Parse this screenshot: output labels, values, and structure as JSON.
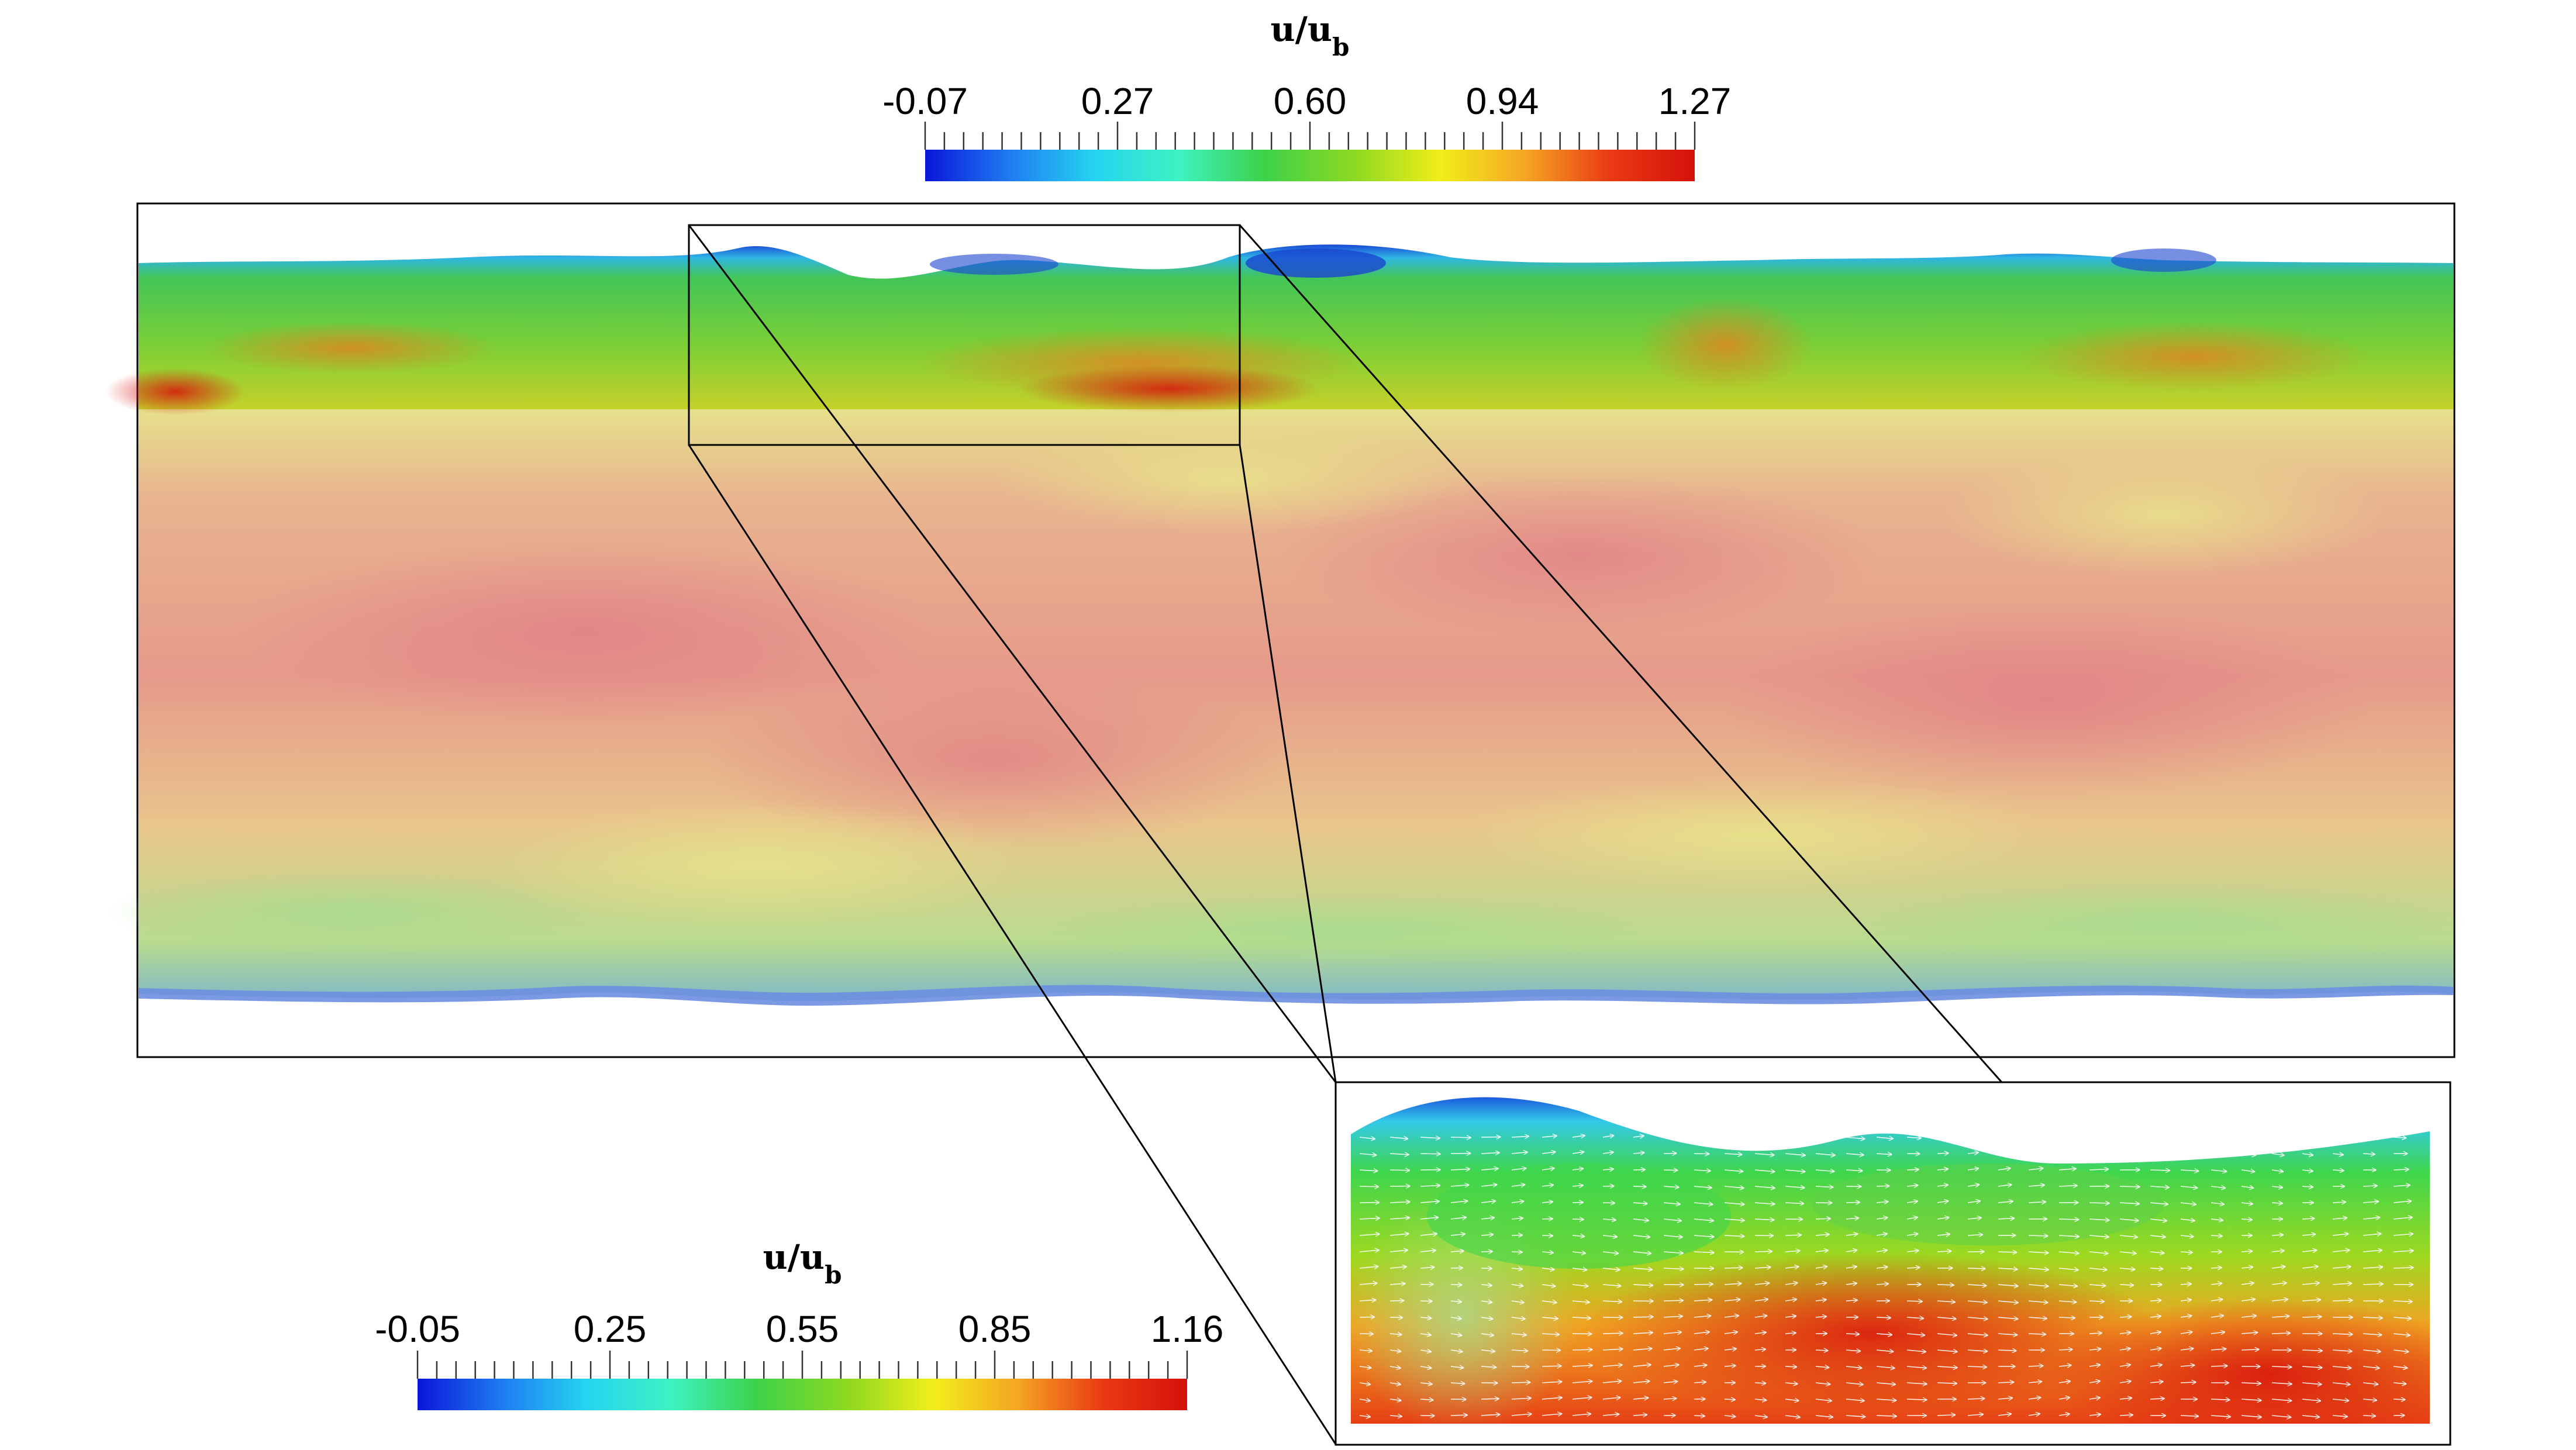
{
  "chart_data": [
    {
      "type": "heatmap",
      "title": "",
      "colorbar": {
        "label_main": "u/u",
        "label_sub": "b",
        "ticks": [
          "-0.07",
          "0.27",
          "0.60",
          "0.94",
          "1.27"
        ],
        "range": [
          -0.07,
          1.27
        ]
      },
      "colormap": [
        "#0a16d8",
        "#1f7cf2",
        "#25d4f0",
        "#3ef2c2",
        "#3cd24a",
        "#8fd920",
        "#f1ee1a",
        "#f5a523",
        "#ea3a13",
        "#d4110b"
      ],
      "description_regions": {
        "channel_top_band_value": 0.7,
        "channel_core_value_range": [
          0.6,
          1.1
        ]
      }
    },
    {
      "type": "heatmap",
      "title": "",
      "colorbar": {
        "label_main": "u/u",
        "label_sub": "b",
        "ticks": [
          "-0.05",
          "0.25",
          "0.55",
          "0.85",
          "1.16"
        ],
        "range": [
          -0.05,
          1.16
        ]
      },
      "colormap": [
        "#0a16d8",
        "#1f7cf2",
        "#25d4f0",
        "#3ef2c2",
        "#3cd24a",
        "#8fd920",
        "#f1ee1a",
        "#f5a523",
        "#ea3a13",
        "#d4110b"
      ],
      "vectors": true
    }
  ]
}
